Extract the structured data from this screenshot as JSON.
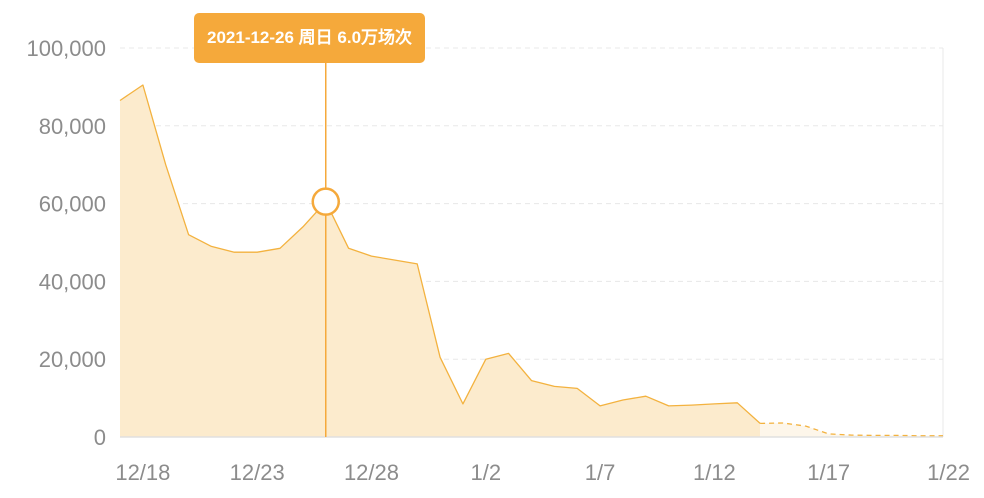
{
  "tooltip": {
    "text": "2021-12-26 周日 6.0万场次",
    "date": "2021-12-26",
    "value": 60500
  },
  "colors": {
    "accent": "#f5a93b",
    "line": "#f3b23f",
    "area": "#fcebcd",
    "forecast_area": "#fdf6ea",
    "grid": "#e8e8e8",
    "tick": "#8c8c8c"
  },
  "chart_data": {
    "type": "area",
    "title": "",
    "xlabel": "",
    "ylabel": "",
    "ylim": [
      0,
      100000
    ],
    "yticks": [
      "0",
      "20,000",
      "40,000",
      "60,000",
      "80,000",
      "100,000"
    ],
    "ytick_values": [
      0,
      20000,
      40000,
      60000,
      80000,
      100000
    ],
    "xticks": [
      "12/18",
      "12/23",
      "12/28",
      "1/2",
      "1/7",
      "1/12",
      "1/17",
      "1/22"
    ],
    "grid": "horizontal dashed",
    "x": [
      "12/17",
      "12/18",
      "12/19",
      "12/20",
      "12/21",
      "12/22",
      "12/23",
      "12/24",
      "12/25",
      "12/26",
      "12/27",
      "12/28",
      "12/29",
      "12/30",
      "12/31",
      "1/1",
      "1/2",
      "1/3",
      "1/4",
      "1/5",
      "1/6",
      "1/7",
      "1/8",
      "1/9",
      "1/10",
      "1/11",
      "1/12",
      "1/13",
      "1/14",
      "1/15",
      "1/16",
      "1/17",
      "1/18",
      "1/19",
      "1/20",
      "1/21",
      "1/22"
    ],
    "series": [
      {
        "style": "solid",
        "x": [
          "12/17",
          "12/18",
          "12/19",
          "12/20",
          "12/21",
          "12/22",
          "12/23",
          "12/24",
          "12/25",
          "12/26",
          "12/27",
          "12/28",
          "12/29",
          "12/30",
          "12/31",
          "1/1",
          "1/2",
          "1/3",
          "1/4",
          "1/5",
          "1/6",
          "1/7",
          "1/8",
          "1/9",
          "1/10",
          "1/11",
          "1/12",
          "1/13",
          "1/14"
        ],
        "values": [
          86500,
          90500,
          70000,
          52000,
          49000,
          47500,
          47500,
          48500,
          54000,
          60500,
          48500,
          46500,
          45500,
          44500,
          20500,
          8500,
          20000,
          21500,
          14500,
          13000,
          12500,
          8000,
          9500,
          10500,
          8000,
          8200,
          8500,
          8800,
          3500
        ]
      },
      {
        "style": "dashed",
        "x": [
          "1/14",
          "1/15",
          "1/16",
          "1/17",
          "1/18",
          "1/19",
          "1/20",
          "1/21",
          "1/22"
        ],
        "values": [
          3500,
          3600,
          2800,
          800,
          500,
          400,
          400,
          300,
          300
        ]
      }
    ]
  }
}
